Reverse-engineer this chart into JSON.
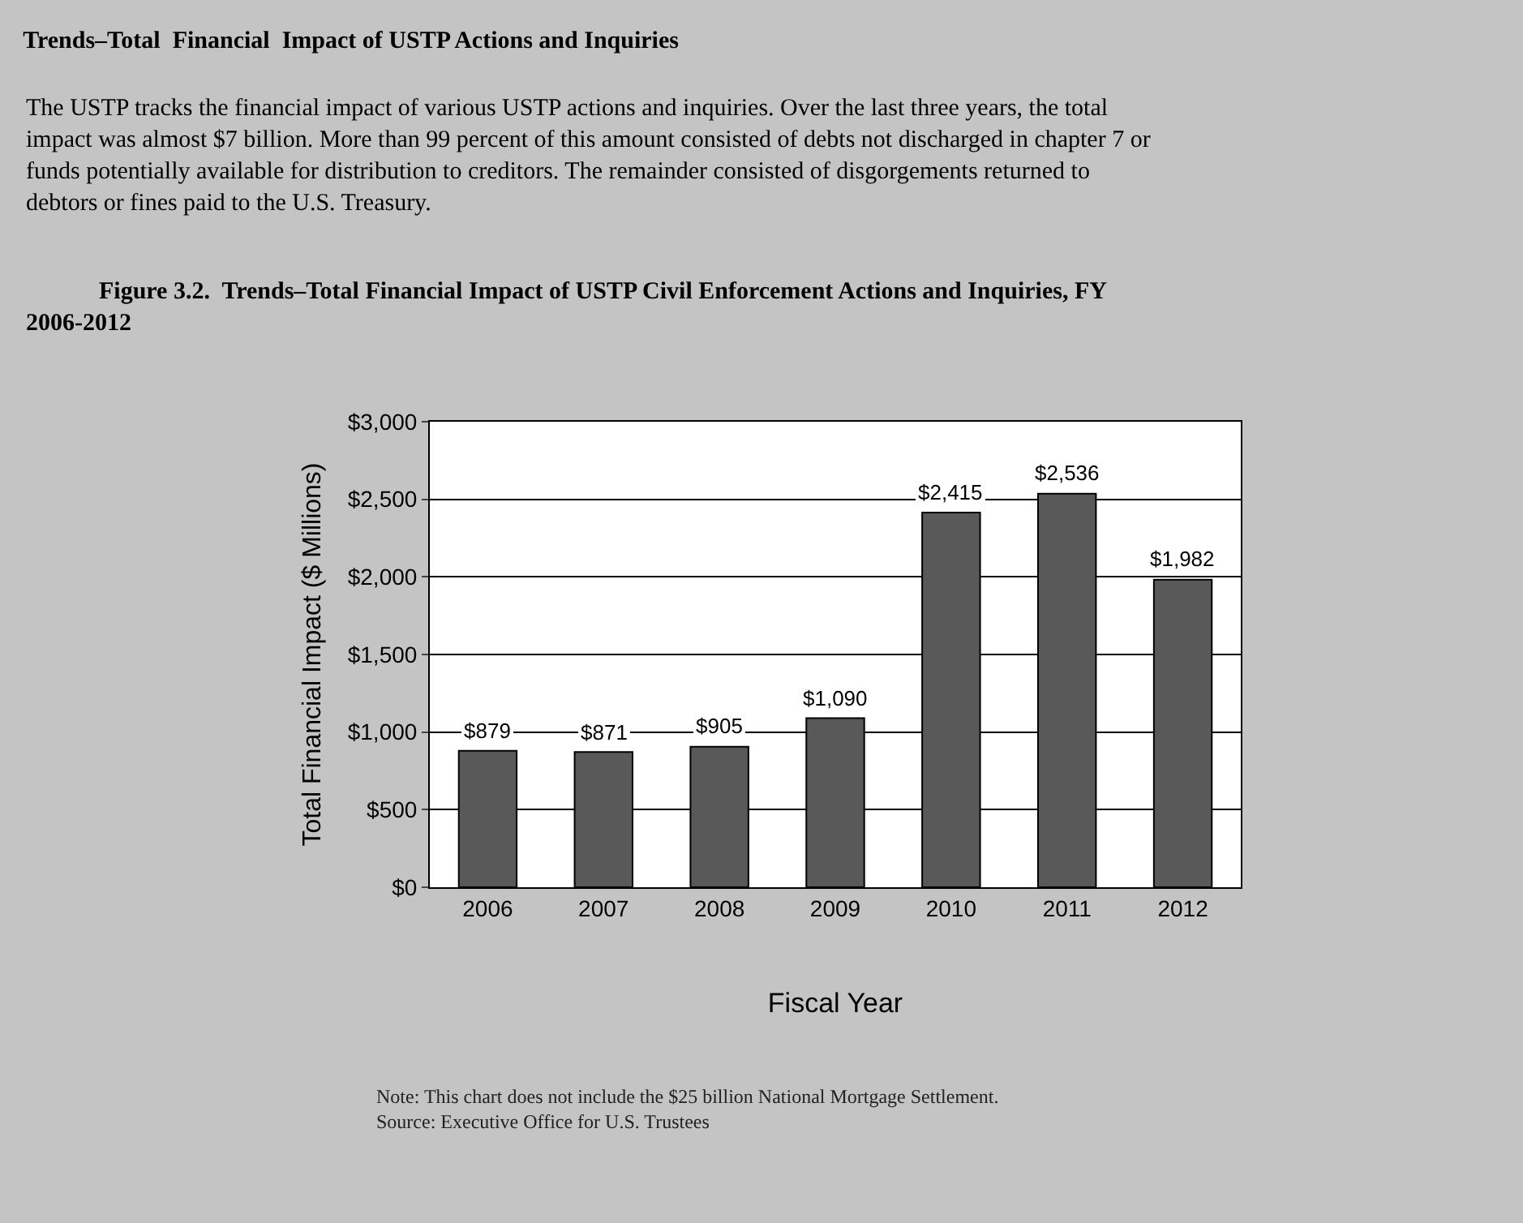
{
  "chart_data": {
    "type": "bar",
    "title": "Trends–Total  Financial  Impact of USTP Actions and Inquiries",
    "subtitle": "The USTP tracks the financial impact of various USTP actions and inquiries. Over the last three years, the total impact was almost $7 billion. More than 99 percent of this amount consisted of debts not discharged in chapter 7 or funds potentially available for distribution to creditors. The remainder consisted of disgorgements returned to debtors or fines paid to the U.S. Treasury.",
    "annotations": [
      "Figure 3.2.  Trends–Total Financial Impact of USTP Civil Enforcement Actions and Inquiries, FY 2006-2012",
      "Note: This chart does not include the $25 billion National Mortgage Settlement.",
      "Source: Executive Office for U.S. Trustees"
    ],
    "xlabel": "Fiscal Year",
    "ylabel": "Total Financial Impact ($ Millions)",
    "categories": [
      "2006",
      "2007",
      "2008",
      "2009",
      "2010",
      "2011",
      "2012"
    ],
    "values": [
      879,
      871,
      905,
      1090,
      2415,
      2536,
      1982
    ],
    "value_labels": [
      "$879",
      "$871",
      "$905",
      "$1,090",
      "$2,415",
      "$2,536",
      "$1,982"
    ],
    "color": "#595959",
    "ylim": [
      0,
      3000
    ],
    "yticks": [
      {
        "value": 0,
        "label": "$0"
      },
      {
        "value": 500,
        "label": "$500"
      },
      {
        "value": 1000,
        "label": "$1,000"
      },
      {
        "value": 1500,
        "label": "$1,500"
      },
      {
        "value": 2000,
        "label": "$2,000"
      },
      {
        "value": 2500,
        "label": "$2,500"
      },
      {
        "value": 3000,
        "label": "$3,000"
      }
    ],
    "grid": "y",
    "legend": false
  }
}
